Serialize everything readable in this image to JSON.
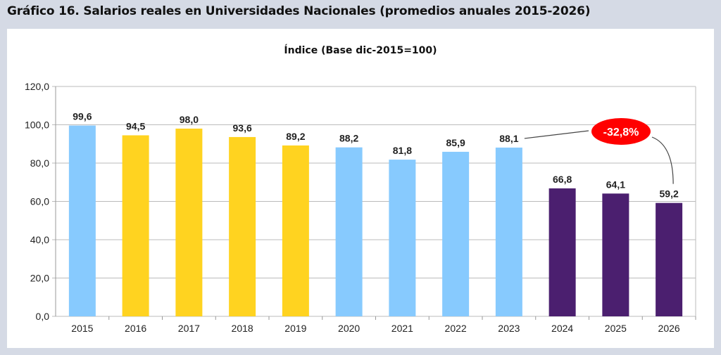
{
  "header": {
    "title": "Gráfico 16.  Salarios reales en Universidades Nacionales (promedios anuales 2015-2026)"
  },
  "chart_data": {
    "type": "bar",
    "title": "Índice (Base dic-2015=100)",
    "xlabel": "",
    "ylabel": "",
    "categories": [
      "2015",
      "2016",
      "2017",
      "2018",
      "2019",
      "2020",
      "2021",
      "2022",
      "2023",
      "2024",
      "2025",
      "2026"
    ],
    "values": [
      99.6,
      94.5,
      98.0,
      93.6,
      89.2,
      88.2,
      81.8,
      85.9,
      88.1,
      66.8,
      64.1,
      59.2
    ],
    "labels": [
      "99,6",
      "94,5",
      "98,0",
      "93,6",
      "89,2",
      "88,2",
      "81,8",
      "85,9",
      "88,1",
      "66,8",
      "64,1",
      "59,2"
    ],
    "colors": [
      "#87cafe",
      "#ffd320",
      "#ffd320",
      "#ffd320",
      "#ffd320",
      "#87cafe",
      "#87cafe",
      "#87cafe",
      "#87cafe",
      "#4b1f6f",
      "#4b1f6f",
      "#4b1f6f"
    ],
    "ylim": [
      0,
      120
    ],
    "yticks": [
      0,
      20,
      40,
      60,
      80,
      100,
      120
    ],
    "ytick_labels": [
      "0,0",
      "20,0",
      "40,0",
      "60,0",
      "80,0",
      "100,0",
      "120,0"
    ],
    "grid": true,
    "annotation": {
      "text": "-32,8%",
      "from": "2023",
      "to": "2026",
      "color": "#ff0000"
    }
  }
}
